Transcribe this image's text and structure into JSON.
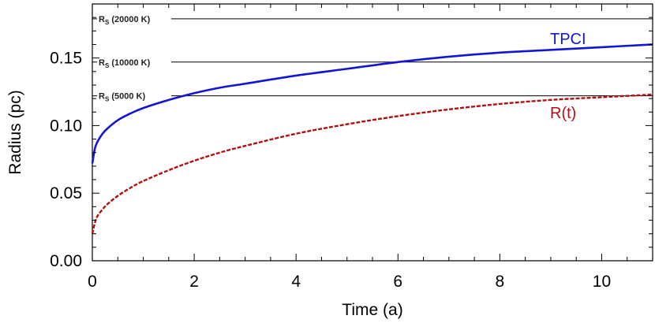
{
  "chart_data": {
    "type": "line",
    "xlabel": "Time (a)",
    "ylabel": "Radius (pc)",
    "xlim": [
      0,
      11
    ],
    "ylim": [
      0,
      0.19
    ],
    "x_ticks": [
      0,
      2,
      4,
      6,
      8,
      10
    ],
    "x_tick_labels": [
      "0",
      "2",
      "4",
      "6",
      "8",
      "10"
    ],
    "y_ticks": [
      0.0,
      0.05,
      0.1,
      0.15
    ],
    "y_tick_labels": [
      "0.00",
      "0.05",
      "0.10",
      "0.15"
    ],
    "grid": false,
    "reference_lines": [
      {
        "label_main": "R",
        "label_sub": "S",
        "label_rest": " (20000 K)",
        "y": 0.179
      },
      {
        "label_main": "R",
        "label_sub": "S",
        "label_rest": " (10000 K)",
        "y": 0.147
      },
      {
        "label_main": "R",
        "label_sub": "S",
        "label_rest": " (5000 K)",
        "y": 0.122
      }
    ],
    "series": [
      {
        "name": "TPCI",
        "color": "#1414d8",
        "style": "solid",
        "x": [
          0,
          0.05,
          0.1,
          0.2,
          0.3,
          0.5,
          0.75,
          1,
          1.5,
          2,
          2.5,
          3,
          4,
          5,
          6,
          7,
          8,
          9,
          10,
          11
        ],
        "y": [
          0.072,
          0.083,
          0.088,
          0.094,
          0.098,
          0.104,
          0.109,
          0.113,
          0.119,
          0.124,
          0.128,
          0.131,
          0.137,
          0.142,
          0.147,
          0.151,
          0.154,
          0.156,
          0.158,
          0.16
        ]
      },
      {
        "name": "R(t)",
        "color": "#b01010",
        "style": "dashed",
        "x": [
          0,
          0.05,
          0.1,
          0.2,
          0.3,
          0.5,
          0.75,
          1,
          1.5,
          2,
          2.5,
          3,
          4,
          5,
          6,
          7,
          8,
          9,
          10,
          11
        ],
        "y": [
          0.02,
          0.028,
          0.033,
          0.038,
          0.042,
          0.048,
          0.054,
          0.059,
          0.067,
          0.074,
          0.08,
          0.085,
          0.094,
          0.101,
          0.107,
          0.112,
          0.116,
          0.119,
          0.121,
          0.123
        ]
      }
    ]
  }
}
